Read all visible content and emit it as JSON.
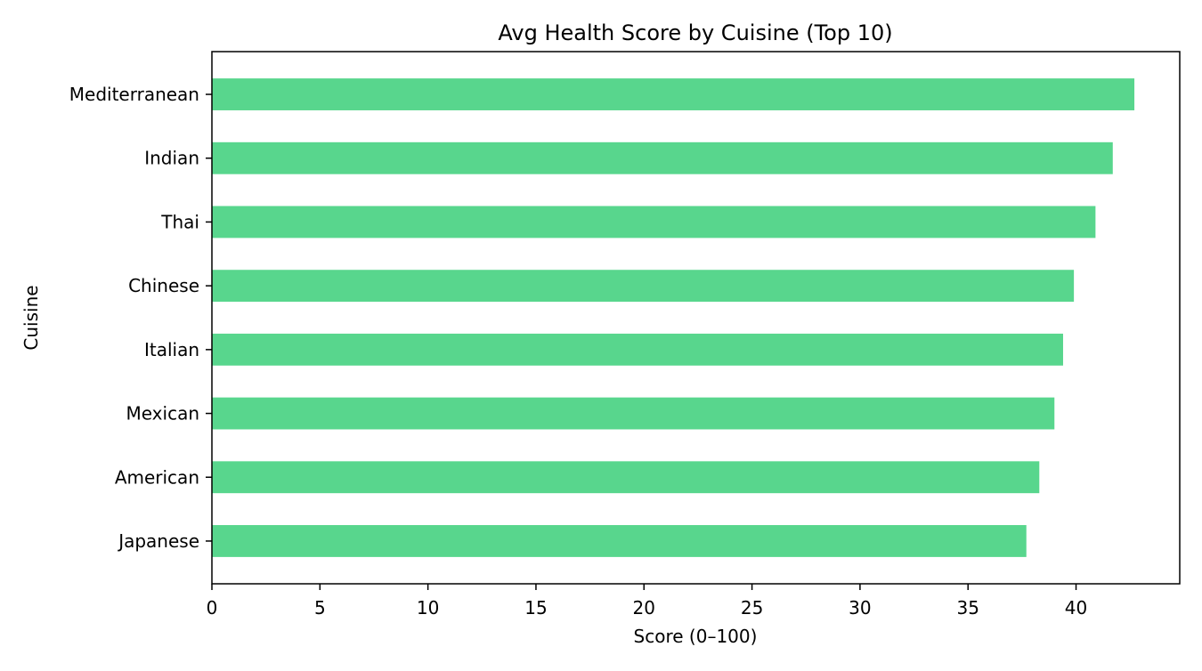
{
  "chart_data": {
    "type": "bar",
    "orientation": "horizontal",
    "title": "Avg Health Score by Cuisine (Top 10)",
    "xlabel": "Score (0–100)",
    "ylabel": "Cuisine",
    "categories": [
      "Japanese",
      "American",
      "Mexican",
      "Italian",
      "Chinese",
      "Thai",
      "Indian",
      "Mediterranean"
    ],
    "values": [
      37.7,
      38.3,
      39.0,
      39.4,
      39.9,
      40.9,
      41.7,
      42.7
    ],
    "xlim": [
      0,
      44.8
    ],
    "xticks": [
      0,
      5,
      10,
      15,
      20,
      25,
      30,
      35,
      40
    ],
    "bar_color": "#58d68d",
    "grid": false,
    "legend": "none"
  }
}
